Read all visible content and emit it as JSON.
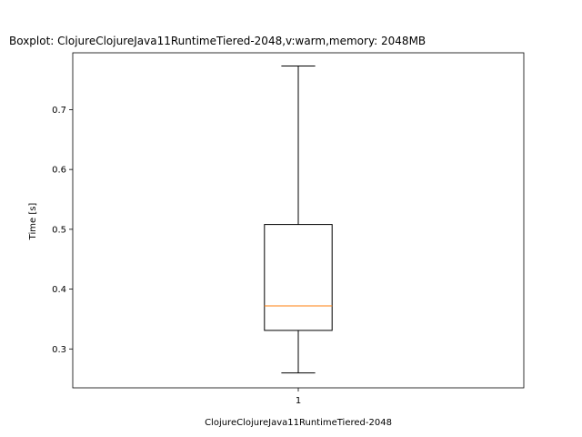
{
  "chart_data": {
    "type": "boxplot",
    "title": "Boxplot: ClojureClojureJava11RuntimeTiered-2048,v:warm,memory: 2048MB",
    "xlabel": "ClojureClojureJava11RuntimeTiered-2048",
    "ylabel": "Time [s]",
    "ylim": [
      0.235,
      0.795
    ],
    "yticks": [
      0.3,
      0.4,
      0.5,
      0.6,
      0.7
    ],
    "ytick_labels": [
      "0.3",
      "0.4",
      "0.5",
      "0.6",
      "0.7"
    ],
    "categories": [
      "1"
    ],
    "boxes": [
      {
        "category": "1",
        "whisker_low": 0.26,
        "q1": 0.331,
        "median": 0.372,
        "q3": 0.508,
        "whisker_high": 0.773
      }
    ],
    "grid": false,
    "legend": "none",
    "colors": {
      "box": "#000000",
      "median": "#ff7f0e"
    }
  }
}
